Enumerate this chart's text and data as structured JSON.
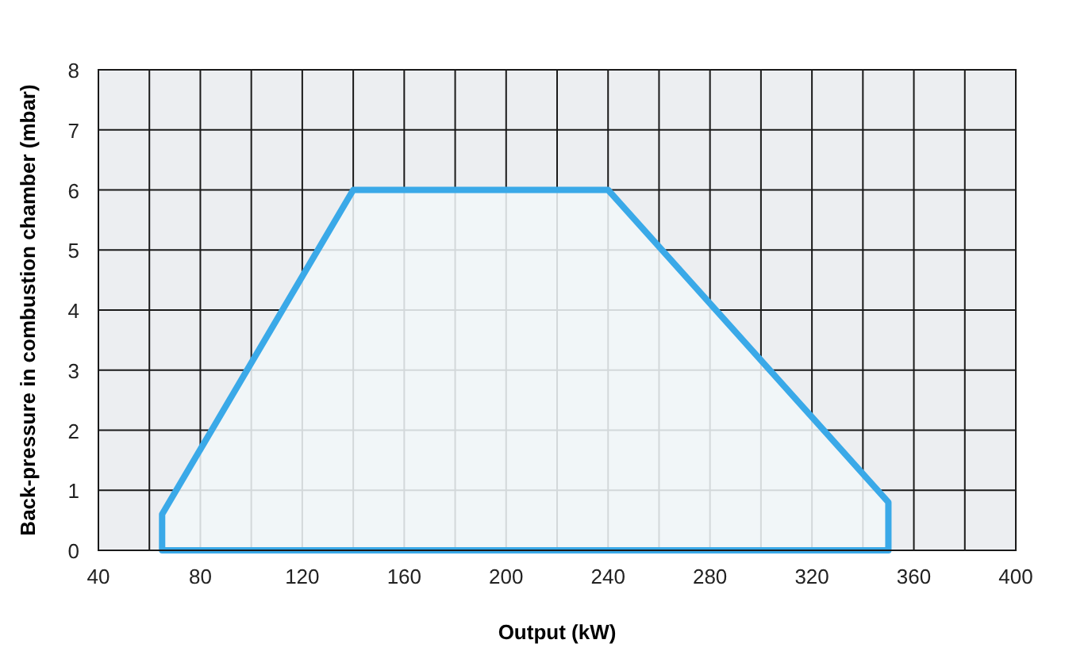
{
  "chart_data": {
    "type": "area",
    "xlabel": "Output (kW)",
    "ylabel": "Back-pressure in combustion chamber (mbar)",
    "x": [
      65,
      140,
      240,
      350
    ],
    "series": [
      {
        "color": "#3aa9e8",
        "values": [
          0.6,
          6,
          6,
          0.8
        ]
      }
    ],
    "xlim": [
      40,
      400
    ],
    "xticks": [
      40,
      {
        "value": 60,
        "label": null
      },
      80,
      {
        "value": 100,
        "label": null
      },
      120,
      {
        "value": 140,
        "label": null
      },
      160,
      {
        "value": 180,
        "label": null
      },
      200,
      {
        "value": 220,
        "label": null
      },
      240,
      {
        "value": 260,
        "label": null
      },
      280,
      {
        "value": 300,
        "label": null
      },
      320,
      {
        "value": 340,
        "label": null
      },
      360,
      {
        "value": 380,
        "label": null
      },
      400
    ],
    "ylim": [
      0,
      8
    ],
    "yticks": [
      0,
      1,
      2,
      3,
      4,
      5,
      6,
      7,
      8
    ],
    "grid": true
  }
}
